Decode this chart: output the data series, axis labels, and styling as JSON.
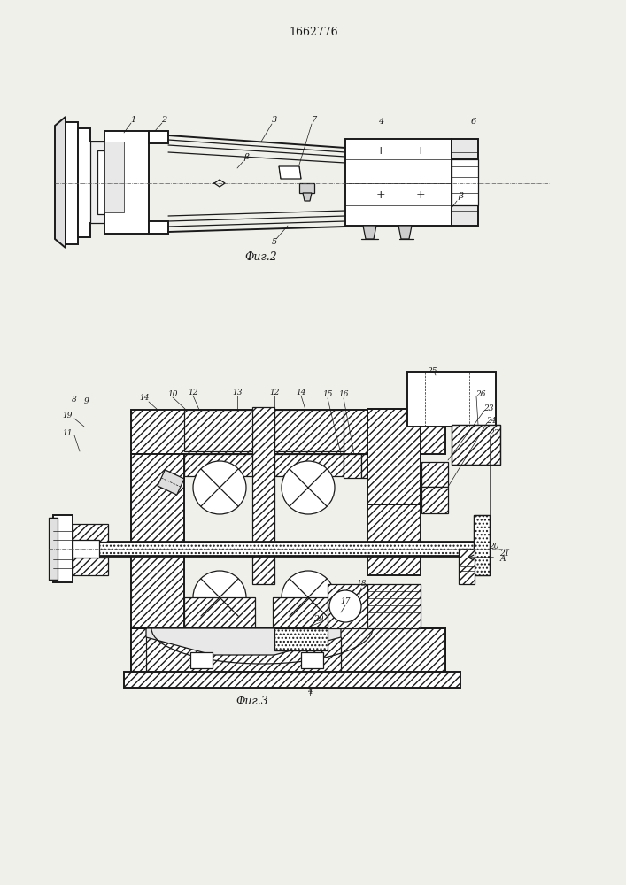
{
  "patent_number": "1662776",
  "fig2_caption": "Фиг.2",
  "fig3_caption": "Фиг.3",
  "bg_color": "#f0f0eb",
  "lc": "#1a1a1a"
}
